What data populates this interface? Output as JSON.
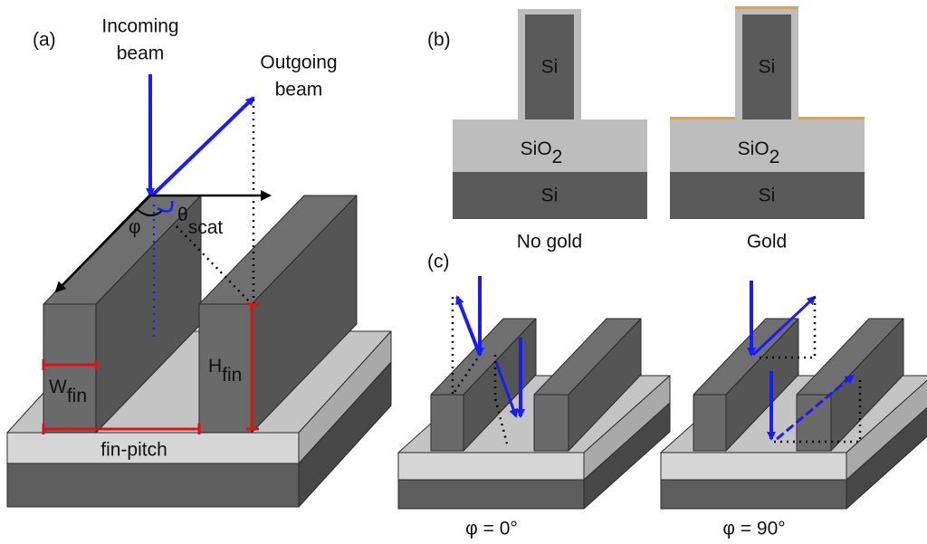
{
  "panel_a": {
    "label": "(a)",
    "incoming_beam": [
      "Incoming",
      "beam"
    ],
    "outgoing_beam": [
      "Outgoing",
      "beam"
    ],
    "phi": "φ",
    "theta": {
      "symbol": "θ",
      "subscript": "scat"
    },
    "w_fin": {
      "symbol": "W",
      "subscript": "fin"
    },
    "h_fin": {
      "symbol": "H",
      "subscript": "fin"
    },
    "fin_pitch": "fin-pitch"
  },
  "panel_b": {
    "label": "(b)",
    "samples": [
      {
        "fin": "Si",
        "oxide": {
          "symbol": "SiO",
          "subscript": "2"
        },
        "substrate": "Si",
        "caption": "No gold"
      },
      {
        "fin": "Si",
        "oxide": {
          "symbol": "SiO",
          "subscript": "2"
        },
        "substrate": "Si",
        "caption": "Gold"
      }
    ]
  },
  "panel_c": {
    "label": "(c)",
    "captions": [
      "φ = 0°",
      "φ = 90°"
    ]
  }
}
